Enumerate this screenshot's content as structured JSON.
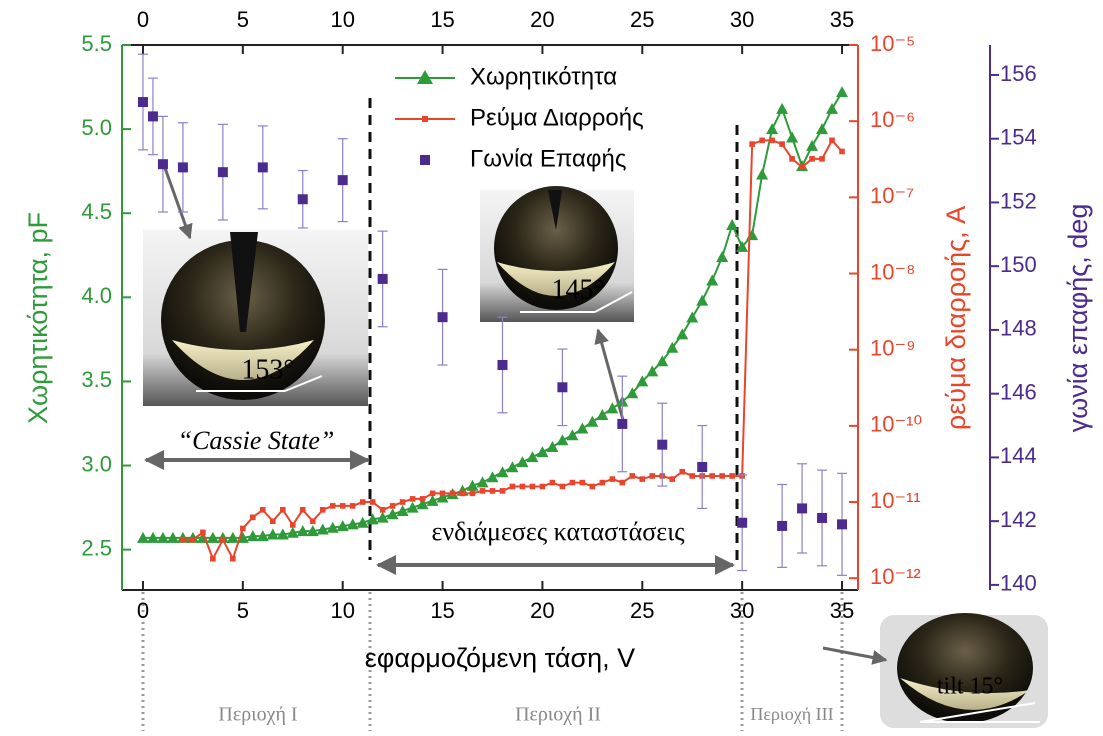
{
  "chart_data": {
    "type": "line",
    "x_label": "εφαρμοζόμενη τάση, V",
    "y_label": "Χωρητικότητα, pF",
    "y2_label": "ρεύμα διαρροής, A",
    "y3_label": "γωνία επαφής, deg",
    "xlim": [
      -1.05,
      35.8
    ],
    "xticks": [
      0,
      5,
      10,
      15,
      20,
      25,
      30,
      35
    ],
    "ylim": [
      2.26,
      5.5
    ],
    "yticks": [
      2.5,
      {
        "value": 3,
        "label": "3.0"
      },
      3.5,
      {
        "value": 4,
        "label": "4.0"
      },
      4.5,
      {
        "value": 5,
        "label": "5.0"
      },
      5.5
    ],
    "y2_log": true,
    "y2lim": [
      7e-13,
      1e-05
    ],
    "y2ticks": [
      {
        "value": 1e-12,
        "label": "10⁻¹²"
      },
      {
        "value": 1e-11,
        "label": "10⁻¹¹"
      },
      {
        "value": 1e-10,
        "label": "10⁻¹⁰"
      },
      {
        "value": 1e-09,
        "label": "10⁻⁹"
      },
      {
        "value": 1e-08,
        "label": "10⁻⁸"
      },
      {
        "value": 1e-07,
        "label": "10⁻⁷"
      },
      {
        "value": 1e-06,
        "label": "10⁻⁶"
      },
      {
        "value": 1e-05,
        "label": "10⁻⁵"
      }
    ],
    "y3lim": [
      139.84,
      156.94
    ],
    "y3ticks": [
      140,
      142,
      144,
      146,
      148,
      150,
      152,
      154,
      156
    ],
    "legend": "upper center",
    "series": [
      {
        "name": "Χωρητικότητα",
        "color": "#2e9a3a",
        "marker": "triangle",
        "x": [
          0,
          0.5,
          1,
          1.5,
          2,
          2.5,
          3,
          3.5,
          4,
          4.5,
          5,
          5.5,
          6,
          6.5,
          7,
          7.5,
          8,
          8.5,
          9,
          9.5,
          10,
          10.5,
          11,
          11.5,
          12,
          12.5,
          13,
          13.5,
          14,
          14.5,
          15,
          15.5,
          16,
          16.5,
          17,
          17.5,
          18,
          18.5,
          19,
          19.5,
          20,
          20.5,
          21,
          21.5,
          22,
          22.5,
          23,
          23.5,
          24,
          24.5,
          25,
          25.5,
          26,
          26.5,
          27,
          27.5,
          28,
          28.5,
          29,
          29.5,
          30,
          30.5,
          31,
          31.5,
          32,
          32.5,
          33,
          33.5,
          34,
          34.5,
          35
        ],
        "values": [
          2.57,
          2.57,
          2.57,
          2.57,
          2.57,
          2.57,
          2.57,
          2.57,
          2.57,
          2.57,
          2.57,
          2.58,
          2.58,
          2.59,
          2.59,
          2.6,
          2.61,
          2.61,
          2.62,
          2.63,
          2.64,
          2.65,
          2.66,
          2.68,
          2.69,
          2.71,
          2.73,
          2.75,
          2.77,
          2.79,
          2.81,
          2.83,
          2.85,
          2.88,
          2.9,
          2.93,
          2.96,
          2.99,
          3.02,
          3.05,
          3.08,
          3.11,
          3.15,
          3.18,
          3.22,
          3.26,
          3.3,
          3.34,
          3.38,
          3.43,
          3.5,
          3.56,
          3.62,
          3.7,
          3.78,
          3.88,
          3.98,
          4.1,
          4.24,
          4.43,
          4.3,
          4.37,
          4.73,
          5.0,
          5.12,
          4.95,
          4.78,
          4.9,
          5.0,
          5.12,
          5.22
        ]
      },
      {
        "name": "Ρεύμα Διαρροής",
        "color": "#e8452c",
        "marker": "square",
        "axis": "y2",
        "x": [
          2,
          2.5,
          3,
          3.5,
          4,
          4.5,
          5,
          5.5,
          6,
          6.5,
          7,
          7.5,
          8,
          8.5,
          9,
          9.5,
          10,
          10.5,
          11,
          11.5,
          12,
          12.5,
          13,
          13.5,
          14,
          14.5,
          15,
          15.5,
          16,
          16.5,
          17,
          17.5,
          18,
          18.5,
          19,
          19.5,
          20,
          20.5,
          21,
          21.5,
          22,
          22.5,
          23,
          23.5,
          24,
          24.5,
          25,
          25.5,
          26,
          26.5,
          27,
          27.5,
          28,
          28.5,
          29,
          29.5,
          30,
          30.5,
          31,
          31.5,
          32,
          32.5,
          33,
          33.5,
          34,
          34.5,
          35
        ],
        "values": [
          3.2e-12,
          3.2e-12,
          4e-12,
          1.8e-12,
          3.2e-12,
          1.8e-12,
          4.5e-12,
          6.3e-12,
          7.9e-12,
          5.6e-12,
          7.9e-12,
          5e-12,
          7.9e-12,
          5.6e-12,
          7.9e-12,
          8.9e-12,
          8.9e-12,
          8.9e-12,
          1e-11,
          1e-11,
          7.9e-12,
          8.9e-12,
          1e-11,
          1.1e-11,
          1.1e-11,
          1.3e-11,
          1.3e-11,
          1.3e-11,
          1.3e-11,
          1.3e-11,
          1.4e-11,
          1.4e-11,
          1.4e-11,
          1.6e-11,
          1.6e-11,
          1.6e-11,
          1.6e-11,
          1.8e-11,
          1.6e-11,
          1.8e-11,
          1.8e-11,
          1.6e-11,
          1.8e-11,
          2e-11,
          1.8e-11,
          2.2e-11,
          2e-11,
          2.2e-11,
          2.2e-11,
          2e-11,
          2.5e-11,
          2.2e-11,
          2.2e-11,
          2.2e-11,
          2.2e-11,
          2.2e-11,
          2.2e-11,
          5e-07,
          5.6e-07,
          5.6e-07,
          5e-07,
          3.2e-07,
          2.5e-07,
          3.2e-07,
          3.2e-07,
          5.6e-07,
          4e-07
        ]
      },
      {
        "name": "Γωνία Επαφής",
        "color": "#4b2c8e",
        "marker": "square",
        "axis": "y3",
        "type": "scatter",
        "x": [
          0,
          0.5,
          1,
          2,
          4,
          6,
          8,
          10,
          12,
          15,
          18,
          21,
          24,
          26,
          28,
          30,
          32,
          33,
          34,
          35
        ],
        "values": [
          155.15,
          154.7,
          153.2,
          153.1,
          152.95,
          153.1,
          152.1,
          152.7,
          149.6,
          148.4,
          146.9,
          146.2,
          145.05,
          144.4,
          143.7,
          141.95,
          141.85,
          142.4,
          142.1,
          141.9
        ],
        "errors": [
          1.5,
          1.2,
          1.5,
          1.4,
          1.5,
          1.3,
          0.9,
          1.3,
          1.5,
          1.5,
          1.5,
          1.2,
          1.5,
          1.3,
          1.3,
          1.5,
          1.3,
          1.4,
          1.5,
          1.6
        ]
      }
    ],
    "annotations": {
      "cassie": "“Cassie State”",
      "intermediate": "ενδιάμεσες καταστάσεις",
      "angle1": "153°",
      "angle2": "145°",
      "tilt": "tilt 15°",
      "region1": "Περιοχή I",
      "region2": "Περιοχή II",
      "region3": "Περιοχή III"
    }
  }
}
